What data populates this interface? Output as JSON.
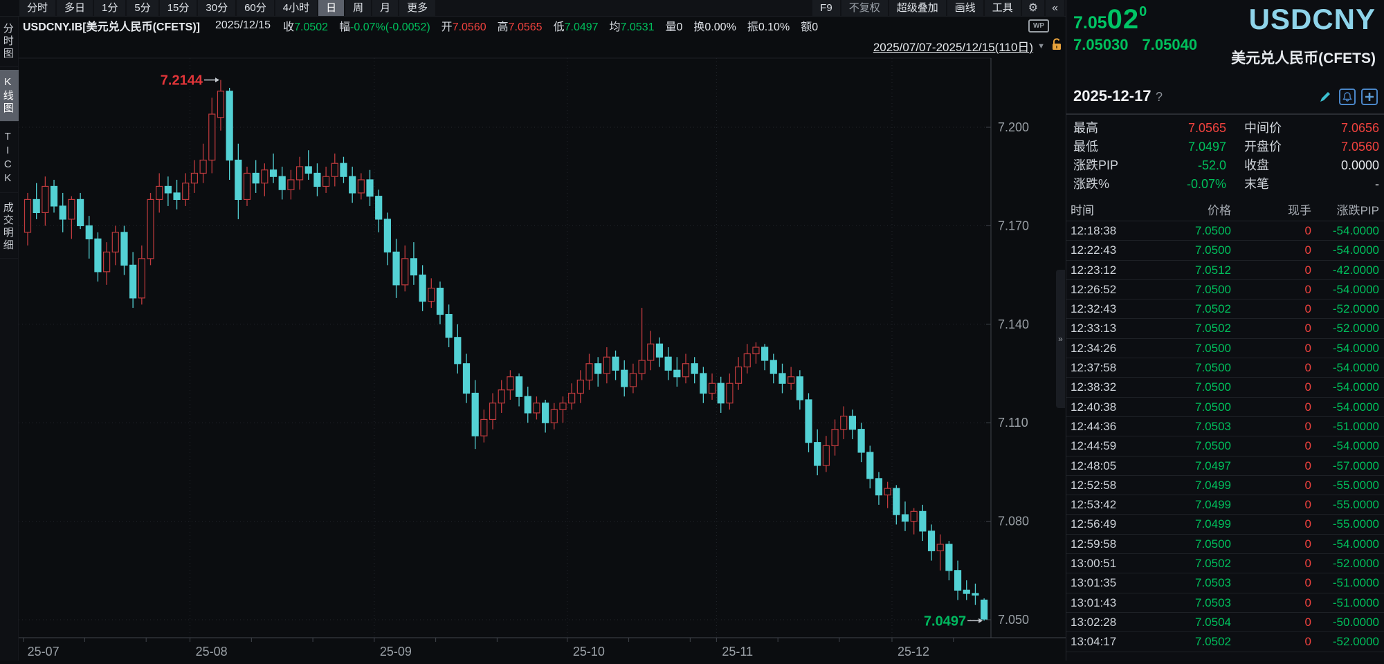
{
  "colors": {
    "up_candle": "#c13b3e",
    "down_candle": "#53d1d4",
    "green_text": "#00c05c",
    "red_text": "#f0423e",
    "cyan_symbol": "#8ed4ea",
    "axis_text": "#9aa0a6",
    "grid": "#24272d",
    "axis_line": "#41454c",
    "arrow": "#c3c8ce"
  },
  "topbar": {
    "left_items": [
      {
        "label": "分时",
        "selected": false
      },
      {
        "label": "多日",
        "selected": false
      },
      {
        "label": "1分",
        "selected": false
      },
      {
        "label": "5分",
        "selected": false
      },
      {
        "label": "15分",
        "selected": false
      },
      {
        "label": "30分",
        "selected": false
      },
      {
        "label": "60分",
        "selected": false
      },
      {
        "label": "4小时",
        "selected": false
      },
      {
        "label": "日",
        "selected": true
      },
      {
        "label": "周",
        "selected": false
      },
      {
        "label": "月",
        "selected": false
      },
      {
        "label": "更多",
        "selected": false
      }
    ],
    "right_items": [
      {
        "label": "F9",
        "dim": false
      },
      {
        "label": "不复权",
        "dim": true
      },
      {
        "label": "超级叠加",
        "dim": false
      },
      {
        "label": "画线",
        "dim": false
      },
      {
        "label": "工具",
        "dim": false
      }
    ],
    "gear_icon": "⚙",
    "collapse_icon": "«"
  },
  "infobar": {
    "symbol": "USDCNY.IB[美元兑人民币(CFETS)]",
    "date": "2025/12/15",
    "fields": [
      {
        "label": "收",
        "value": "7.0502",
        "color": "green"
      },
      {
        "label": "幅",
        "value": "-0.07%(-0.0052)",
        "color": "green"
      },
      {
        "label": "开",
        "value": "7.0560",
        "color": "red"
      },
      {
        "label": "高",
        "value": "7.0565",
        "color": "red"
      },
      {
        "label": "低",
        "value": "7.0497",
        "color": "green"
      },
      {
        "label": "均",
        "value": "7.0531",
        "color": "green"
      },
      {
        "label": "量",
        "value": "0",
        "color": "white"
      },
      {
        "label": "换",
        "value": "0.00%",
        "color": "white"
      },
      {
        "label": "振",
        "value": "0.10%",
        "color": "white"
      },
      {
        "label": "额",
        "value": "0",
        "color": "white"
      }
    ],
    "wp_icon_label": "WP"
  },
  "sidebar": {
    "tabs": [
      {
        "label": "分时图",
        "selected": false
      },
      {
        "label": "K线图",
        "selected": true
      },
      {
        "label": "TICK",
        "selected": false
      },
      {
        "label": "成交明细",
        "selected": false
      }
    ]
  },
  "chart": {
    "range_label": "2025/07/07-2025/12/15(110日)",
    "dropdown_icon": "▼"
  },
  "chart_data": {
    "type": "candlestick",
    "symbol": "USDCNY.IB",
    "period": "日",
    "date_range": "2025/07/07-2025/12/15",
    "candle_count": 110,
    "y_ticks": [
      "7.200",
      "7.170",
      "7.140",
      "7.110",
      "7.080",
      "7.050"
    ],
    "y_tick_top_price": 7.2,
    "y_tick_step": 0.03,
    "x_labels": [
      {
        "label": "25-07",
        "index": 0
      },
      {
        "label": "25-08",
        "index": 19
      },
      {
        "label": "25-09",
        "index": 40
      },
      {
        "label": "25-10",
        "index": 62
      },
      {
        "label": "25-11",
        "index": 79
      },
      {
        "label": "25-12",
        "index": 99
      }
    ],
    "annotations": [
      {
        "text": "7.2144",
        "index": 22,
        "price": 7.2144,
        "color": "#e23539"
      },
      {
        "text": "7.0497",
        "index": 109,
        "price": 7.0497,
        "color": "#00b85f"
      }
    ],
    "ohlc": [
      [
        7.168,
        7.18,
        7.164,
        7.178
      ],
      [
        7.178,
        7.183,
        7.172,
        7.174
      ],
      [
        7.174,
        7.185,
        7.17,
        7.182
      ],
      [
        7.182,
        7.184,
        7.174,
        7.176
      ],
      [
        7.176,
        7.18,
        7.168,
        7.172
      ],
      [
        7.172,
        7.179,
        7.166,
        7.178
      ],
      [
        7.178,
        7.18,
        7.169,
        7.17
      ],
      [
        7.17,
        7.173,
        7.16,
        7.166
      ],
      [
        7.166,
        7.168,
        7.153,
        7.156
      ],
      [
        7.156,
        7.165,
        7.152,
        7.162
      ],
      [
        7.162,
        7.17,
        7.158,
        7.168
      ],
      [
        7.168,
        7.17,
        7.155,
        7.158
      ],
      [
        7.158,
        7.162,
        7.145,
        7.148
      ],
      [
        7.148,
        7.164,
        7.146,
        7.16
      ],
      [
        7.16,
        7.18,
        7.158,
        7.178
      ],
      [
        7.178,
        7.186,
        7.174,
        7.182
      ],
      [
        7.182,
        7.185,
        7.176,
        7.18
      ],
      [
        7.18,
        7.184,
        7.175,
        7.178
      ],
      [
        7.178,
        7.186,
        7.176,
        7.183
      ],
      [
        7.183,
        7.19,
        7.18,
        7.186
      ],
      [
        7.186,
        7.195,
        7.183,
        7.19
      ],
      [
        7.19,
        7.209,
        7.186,
        7.204
      ],
      [
        7.203,
        7.2144,
        7.199,
        7.211
      ],
      [
        7.211,
        7.212,
        7.184,
        7.19
      ],
      [
        7.19,
        7.195,
        7.172,
        7.178
      ],
      [
        7.178,
        7.188,
        7.176,
        7.186
      ],
      [
        7.186,
        7.19,
        7.18,
        7.183
      ],
      [
        7.183,
        7.189,
        7.179,
        7.187
      ],
      [
        7.187,
        7.192,
        7.183,
        7.185
      ],
      [
        7.185,
        7.188,
        7.178,
        7.181
      ],
      [
        7.181,
        7.187,
        7.178,
        7.184
      ],
      [
        7.184,
        7.191,
        7.181,
        7.188
      ],
      [
        7.188,
        7.193,
        7.184,
        7.186
      ],
      [
        7.186,
        7.189,
        7.179,
        7.182
      ],
      [
        7.182,
        7.188,
        7.18,
        7.185
      ],
      [
        7.185,
        7.192,
        7.182,
        7.189
      ],
      [
        7.189,
        7.191,
        7.183,
        7.185
      ],
      [
        7.185,
        7.188,
        7.177,
        7.18
      ],
      [
        7.18,
        7.186,
        7.178,
        7.184
      ],
      [
        7.184,
        7.187,
        7.176,
        7.179
      ],
      [
        7.179,
        7.181,
        7.168,
        7.172
      ],
      [
        7.172,
        7.174,
        7.158,
        7.162
      ],
      [
        7.162,
        7.166,
        7.148,
        7.152
      ],
      [
        7.152,
        7.164,
        7.15,
        7.16
      ],
      [
        7.16,
        7.165,
        7.152,
        7.155
      ],
      [
        7.155,
        7.158,
        7.144,
        7.147
      ],
      [
        7.147,
        7.154,
        7.145,
        7.151
      ],
      [
        7.151,
        7.153,
        7.14,
        7.143
      ],
      [
        7.143,
        7.146,
        7.133,
        7.136
      ],
      [
        7.136,
        7.14,
        7.125,
        7.128
      ],
      [
        7.128,
        7.131,
        7.116,
        7.119
      ],
      [
        7.119,
        7.123,
        7.102,
        7.106
      ],
      [
        7.106,
        7.114,
        7.104,
        7.111
      ],
      [
        7.111,
        7.119,
        7.108,
        7.116
      ],
      [
        7.116,
        7.123,
        7.113,
        7.12
      ],
      [
        7.12,
        7.126,
        7.117,
        7.124
      ],
      [
        7.124,
        7.125,
        7.115,
        7.118
      ],
      [
        7.118,
        7.121,
        7.11,
        7.113
      ],
      [
        7.113,
        7.118,
        7.111,
        7.116
      ],
      [
        7.116,
        7.117,
        7.107,
        7.11
      ],
      [
        7.11,
        7.116,
        7.108,
        7.114
      ],
      [
        7.114,
        7.118,
        7.11,
        7.116
      ],
      [
        7.116,
        7.122,
        7.114,
        7.119
      ],
      [
        7.119,
        7.126,
        7.116,
        7.123
      ],
      [
        7.123,
        7.131,
        7.12,
        7.128
      ],
      [
        7.128,
        7.13,
        7.121,
        7.125
      ],
      [
        7.125,
        7.133,
        7.122,
        7.13
      ],
      [
        7.13,
        7.132,
        7.123,
        7.126
      ],
      [
        7.126,
        7.129,
        7.118,
        7.121
      ],
      [
        7.121,
        7.128,
        7.119,
        7.125
      ],
      [
        7.125,
        7.145,
        7.123,
        7.129
      ],
      [
        7.129,
        7.138,
        7.126,
        7.134
      ],
      [
        7.134,
        7.136,
        7.127,
        7.13
      ],
      [
        7.13,
        7.133,
        7.123,
        7.126
      ],
      [
        7.126,
        7.13,
        7.121,
        7.124
      ],
      [
        7.124,
        7.131,
        7.122,
        7.128
      ],
      [
        7.128,
        7.13,
        7.122,
        7.125
      ],
      [
        7.125,
        7.127,
        7.116,
        7.119
      ],
      [
        7.119,
        7.125,
        7.117,
        7.122
      ],
      [
        7.122,
        7.124,
        7.113,
        7.116
      ],
      [
        7.116,
        7.125,
        7.114,
        7.122
      ],
      [
        7.122,
        7.13,
        7.12,
        7.127
      ],
      [
        7.127,
        7.134,
        7.125,
        7.131
      ],
      [
        7.131,
        7.1345,
        7.128,
        7.133
      ],
      [
        7.133,
        7.134,
        7.126,
        7.129
      ],
      [
        7.129,
        7.131,
        7.122,
        7.125
      ],
      [
        7.125,
        7.128,
        7.119,
        7.122
      ],
      [
        7.122,
        7.127,
        7.12,
        7.124
      ],
      [
        7.124,
        7.126,
        7.114,
        7.117
      ],
      [
        7.117,
        7.119,
        7.101,
        7.104
      ],
      [
        7.104,
        7.108,
        7.094,
        7.097
      ],
      [
        7.097,
        7.106,
        7.095,
        7.103
      ],
      [
        7.103,
        7.111,
        7.1,
        7.108
      ],
      [
        7.108,
        7.115,
        7.105,
        7.112
      ],
      [
        7.112,
        7.114,
        7.105,
        7.108
      ],
      [
        7.108,
        7.11,
        7.098,
        7.101
      ],
      [
        7.101,
        7.103,
        7.09,
        7.093
      ],
      [
        7.093,
        7.095,
        7.085,
        7.088
      ],
      [
        7.088,
        7.092,
        7.084,
        7.09
      ],
      [
        7.09,
        7.091,
        7.079,
        7.082
      ],
      [
        7.082,
        7.086,
        7.077,
        7.08
      ],
      [
        7.08,
        7.084,
        7.076,
        7.083
      ],
      [
        7.083,
        7.085,
        7.074,
        7.077
      ],
      [
        7.077,
        7.079,
        7.068,
        7.071
      ],
      [
        7.071,
        7.076,
        7.065,
        7.073
      ],
      [
        7.073,
        7.074,
        7.062,
        7.065
      ],
      [
        7.065,
        7.068,
        7.056,
        7.059
      ],
      [
        7.059,
        7.062,
        7.056,
        7.058
      ],
      [
        7.058,
        7.061,
        7.0545,
        7.0575
      ],
      [
        7.056,
        7.0565,
        7.0497,
        7.0502
      ]
    ]
  },
  "panel": {
    "last_price_parts": {
      "head": "7.05",
      "big": "02",
      "sup": "0"
    },
    "bid": "7.05030",
    "ask": "7.05040",
    "symbol": "USDCNY",
    "name_cn": "美元兑人民币(CFETS)",
    "quote_date": "2025-12-17",
    "quote_date_hint": "?",
    "stats": [
      {
        "l1": "最高",
        "v1": "7.0565",
        "c1": "red",
        "l2": "中间价",
        "v2": "7.0656",
        "c2": "red"
      },
      {
        "l1": "最低",
        "v1": "7.0497",
        "c1": "green",
        "l2": "开盘价",
        "v2": "7.0560",
        "c2": "red"
      },
      {
        "l1": "涨跌PIP",
        "v1": "-52.0",
        "c1": "green",
        "l2": "收盘",
        "v2": "0.0000",
        "c2": "white"
      },
      {
        "l1": "涨跌%",
        "v1": "-0.07%",
        "c1": "green",
        "l2": "末笔",
        "v2": "-",
        "c2": "white"
      }
    ],
    "table": {
      "headers": [
        "时间",
        "价格",
        "现手",
        "涨跌PIP"
      ],
      "rows": [
        {
          "time": "12:18:38",
          "price": "7.0500",
          "lot": "0",
          "pip": "-54.0000"
        },
        {
          "time": "12:22:43",
          "price": "7.0500",
          "lot": "0",
          "pip": "-54.0000"
        },
        {
          "time": "12:23:12",
          "price": "7.0512",
          "lot": "0",
          "pip": "-42.0000"
        },
        {
          "time": "12:26:52",
          "price": "7.0500",
          "lot": "0",
          "pip": "-54.0000"
        },
        {
          "time": "12:32:43",
          "price": "7.0502",
          "lot": "0",
          "pip": "-52.0000"
        },
        {
          "time": "12:33:13",
          "price": "7.0502",
          "lot": "0",
          "pip": "-52.0000"
        },
        {
          "time": "12:34:26",
          "price": "7.0500",
          "lot": "0",
          "pip": "-54.0000"
        },
        {
          "time": "12:37:58",
          "price": "7.0500",
          "lot": "0",
          "pip": "-54.0000"
        },
        {
          "time": "12:38:32",
          "price": "7.0500",
          "lot": "0",
          "pip": "-54.0000"
        },
        {
          "time": "12:40:38",
          "price": "7.0500",
          "lot": "0",
          "pip": "-54.0000"
        },
        {
          "time": "12:44:36",
          "price": "7.0503",
          "lot": "0",
          "pip": "-51.0000"
        },
        {
          "time": "12:44:59",
          "price": "7.0500",
          "lot": "0",
          "pip": "-54.0000"
        },
        {
          "time": "12:48:05",
          "price": "7.0497",
          "lot": "0",
          "pip": "-57.0000"
        },
        {
          "time": "12:52:58",
          "price": "7.0499",
          "lot": "0",
          "pip": "-55.0000"
        },
        {
          "time": "12:53:42",
          "price": "7.0499",
          "lot": "0",
          "pip": "-55.0000"
        },
        {
          "time": "12:56:49",
          "price": "7.0499",
          "lot": "0",
          "pip": "-55.0000"
        },
        {
          "time": "12:59:58",
          "price": "7.0500",
          "lot": "0",
          "pip": "-54.0000"
        },
        {
          "time": "13:00:51",
          "price": "7.0502",
          "lot": "0",
          "pip": "-52.0000"
        },
        {
          "time": "13:01:35",
          "price": "7.0503",
          "lot": "0",
          "pip": "-51.0000"
        },
        {
          "time": "13:01:43",
          "price": "7.0503",
          "lot": "0",
          "pip": "-51.0000"
        },
        {
          "time": "13:02:28",
          "price": "7.0504",
          "lot": "0",
          "pip": "-50.0000"
        },
        {
          "time": "13:04:17",
          "price": "7.0502",
          "lot": "0",
          "pip": "-52.0000"
        }
      ]
    }
  }
}
